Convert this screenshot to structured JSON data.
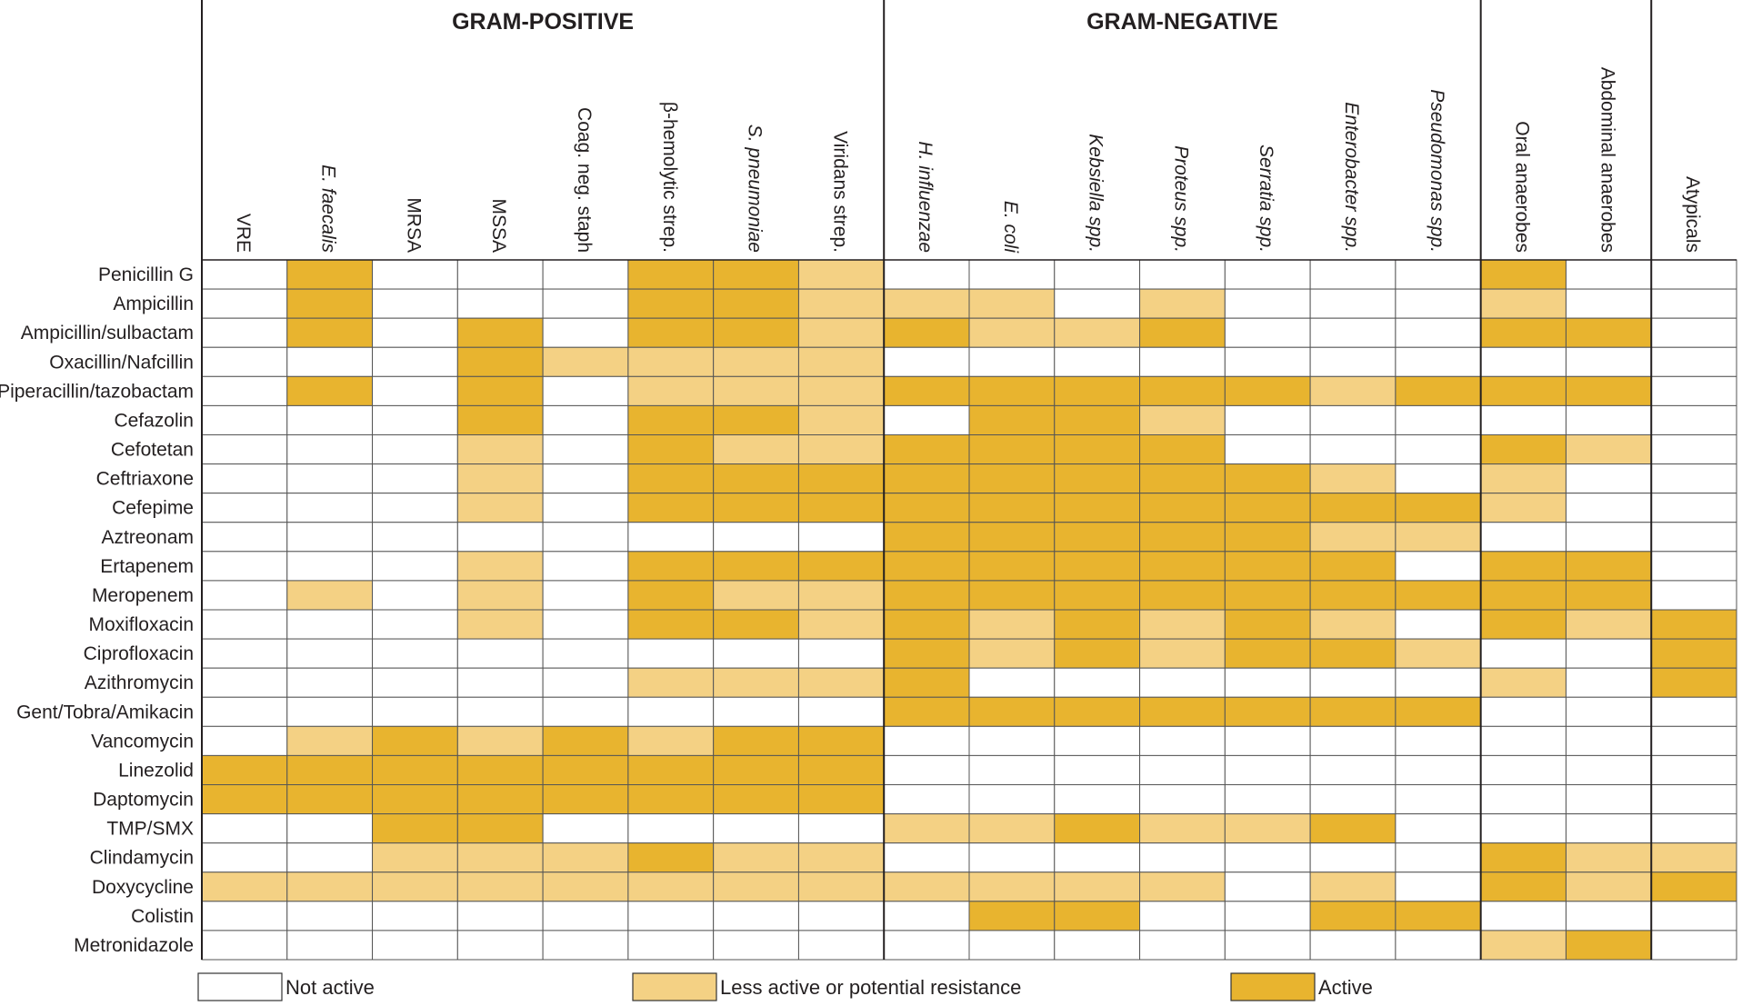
{
  "chart_data": {
    "type": "heatmap",
    "groups": [
      {
        "title": "GRAM-POSITIVE",
        "columns": [
          0,
          7
        ]
      },
      {
        "title": "GRAM-NEGATIVE",
        "columns": [
          8,
          14
        ]
      },
      {
        "title": "",
        "columns": [
          15,
          16
        ]
      },
      {
        "title": "",
        "columns": [
          17,
          17
        ]
      }
    ],
    "columns": [
      {
        "label": "VRE",
        "italic": false
      },
      {
        "label": "E. faecalis",
        "italic": true
      },
      {
        "label": "MRSA",
        "italic": false
      },
      {
        "label": "MSSA",
        "italic": false
      },
      {
        "label": "Coag. neg. staph",
        "italic": false
      },
      {
        "label": "β-hemolytic strep.",
        "italic": false
      },
      {
        "label": "S. pneumoniae",
        "italic": true
      },
      {
        "label": "Viridans strep.",
        "italic": false
      },
      {
        "label": "H. influenzae",
        "italic": true
      },
      {
        "label": "E. coli",
        "italic": true
      },
      {
        "label": "Kebsiella spp.",
        "italic": true
      },
      {
        "label": "Proteus spp.",
        "italic": true
      },
      {
        "label": "Serratia spp.",
        "italic": true
      },
      {
        "label": "Enterobacter spp.",
        "italic": true
      },
      {
        "label": "Pseudomonas spp.",
        "italic": true
      },
      {
        "label": "Oral anaerobes",
        "italic": false
      },
      {
        "label": "Abdominal anaerobes",
        "italic": false
      },
      {
        "label": "Atypicals",
        "italic": false
      }
    ],
    "rows": [
      {
        "label": "Penicillin G",
        "values": [
          0,
          2,
          0,
          0,
          0,
          2,
          2,
          1,
          0,
          0,
          0,
          0,
          0,
          0,
          0,
          2,
          0,
          0
        ]
      },
      {
        "label": "Ampicillin",
        "values": [
          0,
          2,
          0,
          0,
          0,
          2,
          2,
          1,
          1,
          1,
          0,
          1,
          0,
          0,
          0,
          1,
          0,
          0
        ]
      },
      {
        "label": "Ampicillin/sulbactam",
        "values": [
          0,
          2,
          0,
          2,
          0,
          2,
          2,
          1,
          2,
          1,
          1,
          2,
          0,
          0,
          0,
          2,
          2,
          0
        ]
      },
      {
        "label": "Oxacillin/Nafcillin",
        "values": [
          0,
          0,
          0,
          2,
          1,
          1,
          1,
          1,
          0,
          0,
          0,
          0,
          0,
          0,
          0,
          0,
          0,
          0
        ]
      },
      {
        "label": "Piperacillin/tazobactam",
        "values": [
          0,
          2,
          0,
          2,
          0,
          1,
          1,
          1,
          2,
          2,
          2,
          2,
          2,
          1,
          2,
          2,
          2,
          0
        ]
      },
      {
        "label": "Cefazolin",
        "values": [
          0,
          0,
          0,
          2,
          0,
          2,
          2,
          1,
          0,
          2,
          2,
          1,
          0,
          0,
          0,
          0,
          0,
          0
        ]
      },
      {
        "label": "Cefotetan",
        "values": [
          0,
          0,
          0,
          1,
          0,
          2,
          1,
          1,
          2,
          2,
          2,
          2,
          0,
          0,
          0,
          2,
          1,
          0
        ]
      },
      {
        "label": "Ceftriaxone",
        "values": [
          0,
          0,
          0,
          1,
          0,
          2,
          2,
          2,
          2,
          2,
          2,
          2,
          2,
          1,
          0,
          1,
          0,
          0
        ]
      },
      {
        "label": "Cefepime",
        "values": [
          0,
          0,
          0,
          1,
          0,
          2,
          2,
          2,
          2,
          2,
          2,
          2,
          2,
          2,
          2,
          1,
          0,
          0
        ]
      },
      {
        "label": "Aztreonam",
        "values": [
          0,
          0,
          0,
          0,
          0,
          0,
          0,
          0,
          2,
          2,
          2,
          2,
          2,
          1,
          1,
          0,
          0,
          0
        ]
      },
      {
        "label": "Ertapenem",
        "values": [
          0,
          0,
          0,
          1,
          0,
          2,
          2,
          2,
          2,
          2,
          2,
          2,
          2,
          2,
          0,
          2,
          2,
          0
        ]
      },
      {
        "label": "Meropenem",
        "values": [
          0,
          1,
          0,
          1,
          0,
          2,
          1,
          1,
          2,
          2,
          2,
          2,
          2,
          2,
          2,
          2,
          2,
          0
        ]
      },
      {
        "label": "Moxifloxacin",
        "values": [
          0,
          0,
          0,
          1,
          0,
          2,
          2,
          1,
          2,
          1,
          2,
          1,
          2,
          1,
          0,
          2,
          1,
          2
        ]
      },
      {
        "label": "Ciprofloxacin",
        "values": [
          0,
          0,
          0,
          0,
          0,
          0,
          0,
          0,
          2,
          1,
          2,
          1,
          2,
          2,
          1,
          0,
          0,
          2
        ]
      },
      {
        "label": "Azithromycin",
        "values": [
          0,
          0,
          0,
          0,
          0,
          1,
          1,
          1,
          2,
          0,
          0,
          0,
          0,
          0,
          0,
          1,
          0,
          2
        ]
      },
      {
        "label": "Gent/Tobra/Amikacin",
        "values": [
          0,
          0,
          0,
          0,
          0,
          0,
          0,
          0,
          2,
          2,
          2,
          2,
          2,
          2,
          2,
          0,
          0,
          0
        ]
      },
      {
        "label": "Vancomycin",
        "values": [
          0,
          1,
          2,
          1,
          2,
          1,
          2,
          2,
          0,
          0,
          0,
          0,
          0,
          0,
          0,
          0,
          0,
          0
        ]
      },
      {
        "label": "Linezolid",
        "values": [
          2,
          2,
          2,
          2,
          2,
          2,
          2,
          2,
          0,
          0,
          0,
          0,
          0,
          0,
          0,
          0,
          0,
          0
        ]
      },
      {
        "label": "Daptomycin",
        "values": [
          2,
          2,
          2,
          2,
          2,
          2,
          2,
          2,
          0,
          0,
          0,
          0,
          0,
          0,
          0,
          0,
          0,
          0
        ]
      },
      {
        "label": "TMP/SMX",
        "values": [
          0,
          0,
          2,
          2,
          0,
          0,
          0,
          0,
          1,
          1,
          2,
          1,
          1,
          2,
          0,
          0,
          0,
          0
        ]
      },
      {
        "label": "Clindamycin",
        "values": [
          0,
          0,
          1,
          1,
          1,
          2,
          1,
          1,
          0,
          0,
          0,
          0,
          0,
          0,
          0,
          2,
          1,
          1
        ]
      },
      {
        "label": "Doxycycline",
        "values": [
          1,
          1,
          1,
          1,
          1,
          1,
          1,
          1,
          1,
          1,
          1,
          1,
          0,
          1,
          0,
          2,
          1,
          2
        ]
      },
      {
        "label": "Colistin",
        "values": [
          0,
          0,
          0,
          0,
          0,
          0,
          0,
          0,
          0,
          2,
          2,
          0,
          0,
          2,
          2,
          0,
          0,
          0
        ]
      },
      {
        "label": "Metronidazole",
        "values": [
          0,
          0,
          0,
          0,
          0,
          0,
          0,
          0,
          0,
          0,
          0,
          0,
          0,
          0,
          0,
          1,
          2,
          0
        ]
      }
    ],
    "legend": [
      {
        "level": 0,
        "label": "Not active",
        "color": "#ffffff"
      },
      {
        "level": 1,
        "label": "Less active or potential resistance",
        "color": "#f4d184"
      },
      {
        "level": 2,
        "label": "Active",
        "color": "#e8b42f"
      }
    ],
    "legend_position": "bottom",
    "colors": {
      "grid": "#555555",
      "frame": "#231f20",
      "text": "#231f20"
    }
  }
}
